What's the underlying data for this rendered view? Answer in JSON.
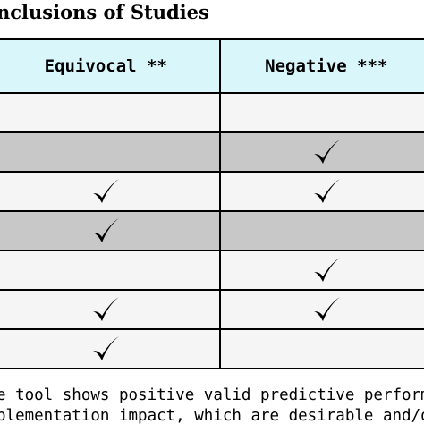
{
  "title": "nclusions of Studies",
  "table": {
    "headers": [
      "Equivocal **",
      "Negative ***"
    ],
    "rows": [
      {
        "equivocal": false,
        "negative": false,
        "shade": "white"
      },
      {
        "equivocal": false,
        "negative": true,
        "shade": "grey"
      },
      {
        "equivocal": true,
        "negative": true,
        "shade": "white"
      },
      {
        "equivocal": true,
        "negative": false,
        "shade": "grey"
      },
      {
        "equivocal": false,
        "negative": true,
        "shade": "white"
      },
      {
        "equivocal": true,
        "negative": true,
        "shade": "white"
      },
      {
        "equivocal": true,
        "negative": false,
        "shade": "white"
      }
    ]
  },
  "footnotes": [
    "e tool shows positive valid predictive performan",
    "plementation impact, which are desirable and/o"
  ],
  "colors": {
    "header_bg": "#d9f6fb",
    "row_white": "#f5f5f5",
    "row_grey": "#c8c8c8"
  },
  "icons": {
    "check": "check-mark-icon"
  }
}
